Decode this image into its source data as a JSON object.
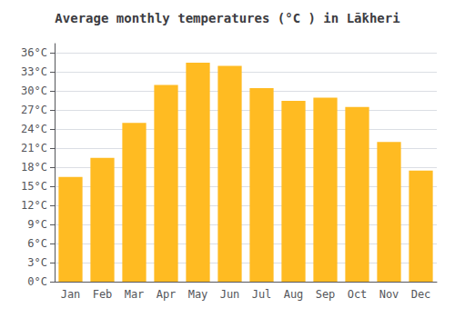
{
  "chart_data": {
    "type": "bar",
    "title": "Average monthly temperatures (°C ) in Lā̇kheri",
    "categories": [
      "Jan",
      "Feb",
      "Mar",
      "Apr",
      "May",
      "Jun",
      "Jul",
      "Aug",
      "Sep",
      "Oct",
      "Nov",
      "Dec"
    ],
    "values": [
      16.5,
      19.5,
      25.0,
      31.0,
      34.5,
      34.0,
      30.5,
      28.5,
      29.0,
      27.5,
      22.0,
      17.5
    ],
    "color": "#FFBB22",
    "ylim": [
      0,
      37.5
    ],
    "yticks": [
      {
        "value": 0,
        "label": "0°C"
      },
      {
        "value": 3,
        "label": "3°C"
      },
      {
        "value": 6,
        "label": "6°C"
      },
      {
        "value": 9,
        "label": "9°C"
      },
      {
        "value": 12,
        "label": "12°C"
      },
      {
        "value": 15,
        "label": "15°C"
      },
      {
        "value": 18,
        "label": "18°C"
      },
      {
        "value": 21,
        "label": "21°C"
      },
      {
        "value": 24,
        "label": "24°C"
      },
      {
        "value": 27,
        "label": "27°C"
      },
      {
        "value": 30,
        "label": "30°C"
      },
      {
        "value": 33,
        "label": "33°C"
      },
      {
        "value": 36,
        "label": "36°C"
      }
    ],
    "grid": true
  }
}
